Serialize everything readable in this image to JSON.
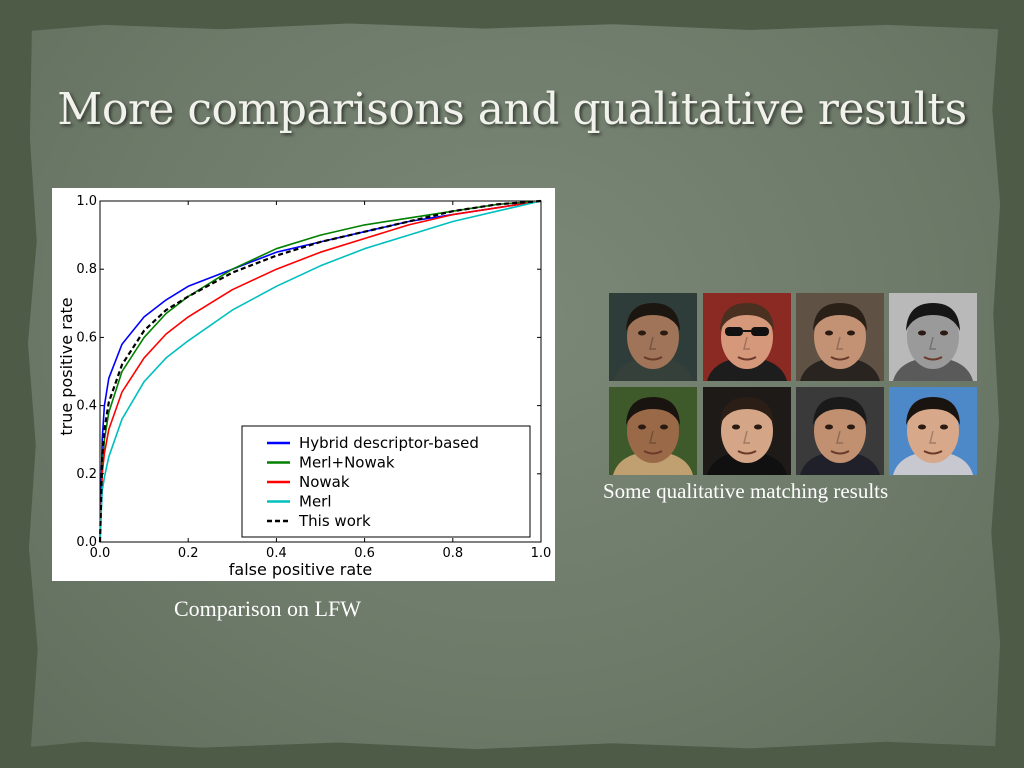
{
  "slide": {
    "title": "More comparisons and qualitative results",
    "chart_caption": "Comparison on LFW",
    "faces_caption": "Some qualitative matching results"
  },
  "faces": [
    {
      "bg": "#2f3d3a",
      "skin": "#a07458",
      "hair": "#1c1610",
      "shirt": "#35403a"
    },
    {
      "bg": "#8a2a22",
      "skin": "#d6987a",
      "hair": "#4a3020",
      "shirt": "#1d1d1d",
      "glasses": true
    },
    {
      "bg": "#5f5244",
      "skin": "#c39274",
      "hair": "#2a2018",
      "shirt": "#2a2420"
    },
    {
      "bg": "#b9b9b9",
      "skin": "#9a9a9a",
      "hair": "#161616",
      "shirt": "#5a5a5a",
      "gray": true
    },
    {
      "bg": "#3e5a2a",
      "skin": "#9a6a48",
      "hair": "#1a1410",
      "shirt": "#c0a070"
    },
    {
      "bg": "#1e1a18",
      "skin": "#d4a586",
      "hair": "#2a1e16",
      "shirt": "#101010"
    },
    {
      "bg": "#3a3a3a",
      "skin": "#c09070",
      "hair": "#1a1a1a",
      "shirt": "#20202a"
    },
    {
      "bg": "#4d88c8",
      "skin": "#d8a88a",
      "hair": "#1a1410",
      "shirt": "#c8c8d0"
    }
  ],
  "chart_data": {
    "type": "line",
    "xlabel": "false positive rate",
    "ylabel": "true positive rate",
    "xlim": [
      0,
      1
    ],
    "ylim": [
      0,
      1
    ],
    "xticks": [
      "0.0",
      "0.2",
      "0.4",
      "0.6",
      "0.8",
      "1.0"
    ],
    "yticks": [
      "0.0",
      "0.2",
      "0.4",
      "0.6",
      "0.8",
      "1.0"
    ],
    "legend_position": "lower-right",
    "grid": false,
    "series": [
      {
        "name": "Hybrid descriptor-based",
        "color": "#0000ff",
        "dash": false,
        "points": [
          [
            0,
            0
          ],
          [
            0.005,
            0.3
          ],
          [
            0.01,
            0.4
          ],
          [
            0.02,
            0.48
          ],
          [
            0.05,
            0.58
          ],
          [
            0.1,
            0.66
          ],
          [
            0.15,
            0.71
          ],
          [
            0.2,
            0.75
          ],
          [
            0.3,
            0.8
          ],
          [
            0.4,
            0.85
          ],
          [
            0.5,
            0.88
          ],
          [
            0.6,
            0.91
          ],
          [
            0.7,
            0.94
          ],
          [
            0.8,
            0.96
          ],
          [
            0.9,
            0.98
          ],
          [
            1,
            1
          ]
        ]
      },
      {
        "name": "Merl+Nowak",
        "color": "#008000",
        "dash": false,
        "points": [
          [
            0,
            0
          ],
          [
            0.005,
            0.22
          ],
          [
            0.01,
            0.3
          ],
          [
            0.02,
            0.38
          ],
          [
            0.05,
            0.5
          ],
          [
            0.1,
            0.6
          ],
          [
            0.15,
            0.67
          ],
          [
            0.2,
            0.72
          ],
          [
            0.3,
            0.8
          ],
          [
            0.4,
            0.86
          ],
          [
            0.5,
            0.9
          ],
          [
            0.6,
            0.93
          ],
          [
            0.7,
            0.95
          ],
          [
            0.8,
            0.97
          ],
          [
            0.9,
            0.99
          ],
          [
            1,
            1
          ]
        ]
      },
      {
        "name": "Nowak",
        "color": "#ff0000",
        "dash": false,
        "points": [
          [
            0,
            0
          ],
          [
            0.005,
            0.2
          ],
          [
            0.01,
            0.26
          ],
          [
            0.02,
            0.33
          ],
          [
            0.05,
            0.44
          ],
          [
            0.1,
            0.54
          ],
          [
            0.15,
            0.61
          ],
          [
            0.2,
            0.66
          ],
          [
            0.3,
            0.74
          ],
          [
            0.4,
            0.8
          ],
          [
            0.5,
            0.85
          ],
          [
            0.6,
            0.89
          ],
          [
            0.7,
            0.93
          ],
          [
            0.8,
            0.96
          ],
          [
            0.9,
            0.98
          ],
          [
            1,
            1
          ]
        ]
      },
      {
        "name": "Merl",
        "color": "#00bfbf",
        "dash": false,
        "points": [
          [
            0,
            0
          ],
          [
            0.005,
            0.15
          ],
          [
            0.01,
            0.19
          ],
          [
            0.02,
            0.25
          ],
          [
            0.05,
            0.36
          ],
          [
            0.1,
            0.47
          ],
          [
            0.15,
            0.54
          ],
          [
            0.2,
            0.59
          ],
          [
            0.3,
            0.68
          ],
          [
            0.4,
            0.75
          ],
          [
            0.5,
            0.81
          ],
          [
            0.6,
            0.86
          ],
          [
            0.7,
            0.9
          ],
          [
            0.8,
            0.94
          ],
          [
            0.9,
            0.97
          ],
          [
            1,
            1
          ]
        ]
      },
      {
        "name": "This work",
        "color": "#000000",
        "dash": true,
        "points": [
          [
            0,
            0
          ],
          [
            0.005,
            0.25
          ],
          [
            0.01,
            0.33
          ],
          [
            0.02,
            0.41
          ],
          [
            0.05,
            0.52
          ],
          [
            0.1,
            0.62
          ],
          [
            0.15,
            0.68
          ],
          [
            0.2,
            0.72
          ],
          [
            0.3,
            0.79
          ],
          [
            0.4,
            0.84
          ],
          [
            0.5,
            0.88
          ],
          [
            0.6,
            0.91
          ],
          [
            0.7,
            0.94
          ],
          [
            0.8,
            0.97
          ],
          [
            0.9,
            0.99
          ],
          [
            1,
            1
          ]
        ]
      }
    ]
  }
}
